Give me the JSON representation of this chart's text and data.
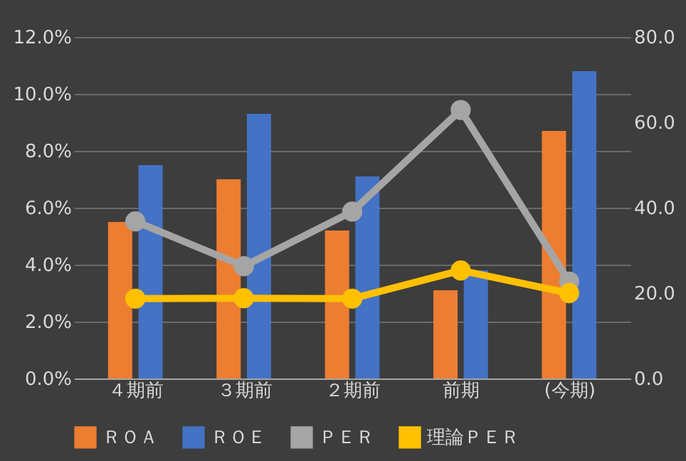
{
  "chart_data": {
    "type": "bar",
    "categories": [
      "４期前",
      "３期前",
      "２期前",
      "前期",
      "(今期)"
    ],
    "series": [
      {
        "name": "ＲＯＡ",
        "color": "#ed7d31",
        "values": [
          5.5,
          7.0,
          5.2,
          3.1,
          8.7
        ]
      },
      {
        "name": "ＲＯＥ",
        "color": "#4472c4",
        "values": [
          7.5,
          9.3,
          7.1,
          3.8,
          10.8
        ]
      },
      {
        "name": "ＰＥＲ",
        "type": "line",
        "axis": "y2",
        "color": "#a5a5a5",
        "values": [
          36.8,
          26.3,
          39.1,
          62.9,
          22.7
        ]
      },
      {
        "name": "理論ＰＥＲ",
        "type": "line",
        "axis": "y2",
        "color": "#ffc000",
        "values": [
          18.7,
          18.8,
          18.7,
          25.3,
          20.0
        ]
      }
    ],
    "ylim": [
      0,
      12
    ],
    "yticks": [
      {
        "value": 0,
        "label": "0.0%"
      },
      {
        "value": 2,
        "label": "2.0%"
      },
      {
        "value": 4,
        "label": "4.0%"
      },
      {
        "value": 6,
        "label": "6.0%"
      },
      {
        "value": 8,
        "label": "8.0%"
      },
      {
        "value": 10,
        "label": "10.0%"
      },
      {
        "value": 12,
        "label": "12.0%"
      }
    ],
    "y2lim": [
      0,
      80
    ],
    "y2ticks": [
      {
        "value": 0,
        "label": "0.0"
      },
      {
        "value": 20,
        "label": "20.0"
      },
      {
        "value": 40,
        "label": "40.0"
      },
      {
        "value": 60,
        "label": "60.0"
      },
      {
        "value": 80,
        "label": "80.0"
      }
    ],
    "grid": "y",
    "legend": "bottom",
    "marker": "circle"
  }
}
